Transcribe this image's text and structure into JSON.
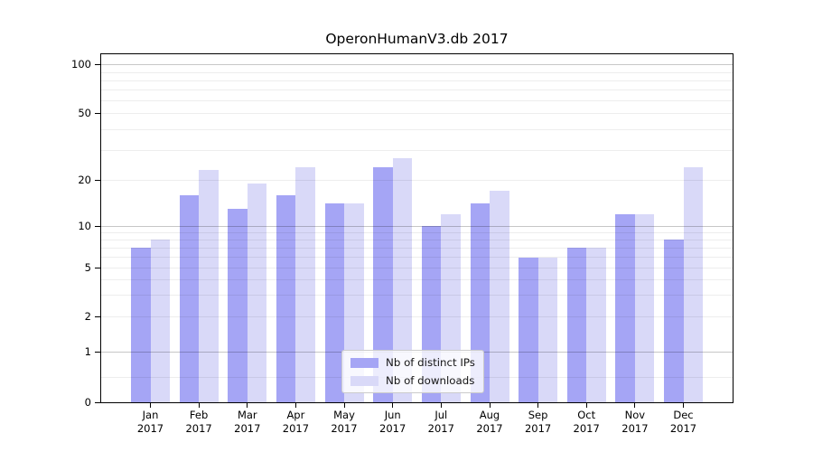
{
  "chart_data": {
    "type": "bar",
    "title": "OperonHumanV3.db 2017",
    "categories": [
      "Jan",
      "Feb",
      "Mar",
      "Apr",
      "May",
      "Jun",
      "Jul",
      "Aug",
      "Sep",
      "Oct",
      "Nov",
      "Dec"
    ],
    "category_year": "2017",
    "series": [
      {
        "name": "Nb of distinct IPs",
        "color": "#a5a5f5",
        "values": [
          7,
          16,
          13,
          16,
          14,
          24,
          10,
          14,
          6,
          7,
          12,
          8
        ]
      },
      {
        "name": "Nb of downloads",
        "color": "#d9d9f8",
        "values": [
          8,
          23,
          19,
          24,
          14,
          27,
          12,
          17,
          6,
          7,
          12,
          24
        ]
      }
    ],
    "xlabel": "",
    "ylabel": "",
    "yscale": "symlog",
    "ylim": [
      0,
      120
    ],
    "ytick_values": [
      100,
      50,
      20,
      10,
      5,
      2,
      1,
      0
    ],
    "ytick_labels": [
      "100",
      "50",
      "20",
      "10",
      "5",
      "2",
      "1",
      "0"
    ],
    "minor_grid_values": [
      0.5,
      2,
      3,
      4,
      5,
      6,
      7,
      8,
      9,
      20,
      30,
      40,
      50,
      60,
      70,
      80,
      90
    ],
    "major_grid_values": [
      1,
      10,
      100
    ],
    "grid": "horizontal",
    "legend_position": "lower center",
    "colors": {
      "bar_distinct_ips": "#a5a5f5",
      "bar_downloads": "#d9d9f8",
      "major_grid": "rgba(0,0,0,0.22)",
      "minor_grid": "rgba(0,0,0,0.07)",
      "axis": "#000000",
      "legend_border": "#cbcbcb"
    }
  }
}
